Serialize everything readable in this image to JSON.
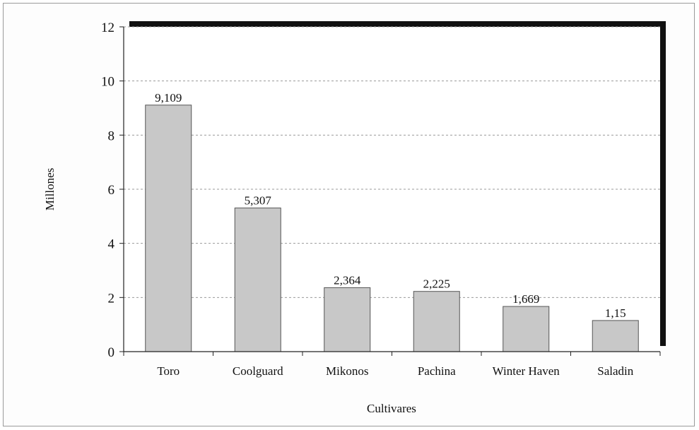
{
  "chart_data": {
    "type": "bar",
    "title": "",
    "xlabel": "Cultivares",
    "ylabel": "Millones",
    "categories": [
      "Toro",
      "Coolguard",
      "Mikonos",
      "Pachina",
      "Winter Haven",
      "Saladin"
    ],
    "values": [
      9.109,
      5.307,
      2.364,
      2.225,
      1.669,
      1.15
    ],
    "value_labels": [
      "9,109",
      "5,307",
      "2,364",
      "2,225",
      "1,669",
      "1,15"
    ],
    "ylim": [
      0,
      12
    ],
    "yticks": [
      0,
      2,
      4,
      6,
      8,
      10,
      12
    ],
    "grid": "horizontal dashed",
    "legend": "none",
    "bar_color": "#c8c8c8",
    "bar_edge_color": "#555555",
    "shadow_color": "#111111"
  }
}
